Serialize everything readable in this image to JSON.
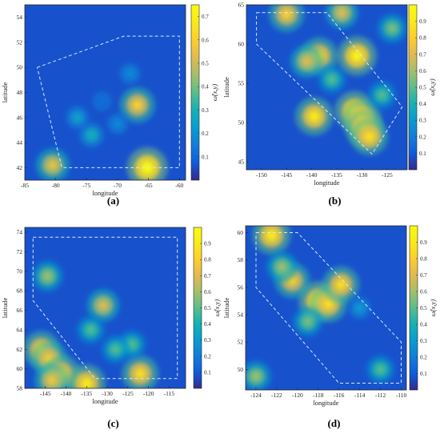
{
  "figure": {
    "panels": [
      {
        "label": "(a)",
        "xlabel": "longitude",
        "ylabel": "latitude",
        "colorbar_label": "ω̂(x,y)"
      },
      {
        "label": "(b)",
        "xlabel": "longitude",
        "ylabel": "latitude",
        "colorbar_label": "ω̂(x,y)"
      },
      {
        "label": "(c)",
        "xlabel": "longitude",
        "ylabel": "latitude",
        "colorbar_label": "ω̂(x,y)"
      },
      {
        "label": "(d)",
        "xlabel": "longitude",
        "ylabel": "latitude",
        "colorbar_label": "ω̂(x,y)"
      }
    ]
  },
  "chart_data": [
    {
      "type": "heatmap",
      "colormap": "parula",
      "xlabel": "longitude",
      "ylabel": "latitude",
      "colorbar_label": "ω̂(x,y)",
      "xlim": [
        -85,
        -59
      ],
      "ylim": [
        41,
        55
      ],
      "clim": [
        0,
        0.75
      ],
      "xticks": [
        -85,
        -80,
        -75,
        -70,
        -65,
        -60
      ],
      "yticks": [
        42,
        44,
        46,
        48,
        50,
        52,
        54
      ],
      "cticks": [
        0.1,
        0.2,
        0.3,
        0.4,
        0.5,
        0.6,
        0.7
      ],
      "region_polygon": [
        [
          -83,
          50
        ],
        [
          -69,
          52.5
        ],
        [
          -60,
          52.5
        ],
        [
          -60,
          42
        ],
        [
          -69,
          42
        ],
        [
          -79,
          42
        ],
        [
          -83,
          50
        ]
      ],
      "hotspots": [
        {
          "lon": -80.5,
          "lat": 42.2,
          "value": 0.55
        },
        {
          "lon": -65.2,
          "lat": 42.0,
          "value": 0.75
        },
        {
          "lon": -66.8,
          "lat": 47.0,
          "value": 0.6
        },
        {
          "lon": -74.2,
          "lat": 44.6,
          "value": 0.3
        },
        {
          "lon": -76.5,
          "lat": 46.0,
          "value": 0.25
        },
        {
          "lon": -68.0,
          "lat": 49.5,
          "value": 0.18
        },
        {
          "lon": -70.0,
          "lat": 45.5,
          "value": 0.18
        },
        {
          "lon": -72.5,
          "lat": 47.3,
          "value": 0.12
        }
      ]
    },
    {
      "type": "heatmap",
      "colormap": "parula",
      "xlabel": "longitude",
      "ylabel": "latitude",
      "colorbar_label": "ω̂(x,y)",
      "xlim": [
        -153,
        -121
      ],
      "ylim": [
        44,
        65
      ],
      "clim": [
        0,
        1
      ],
      "xticks": [
        -150,
        -145,
        -140,
        -135,
        -130,
        -125
      ],
      "yticks": [
        45,
        50,
        55,
        60,
        65
      ],
      "cticks": [
        0.1,
        0.2,
        0.3,
        0.4,
        0.5,
        0.6,
        0.7,
        0.8,
        0.9
      ],
      "region_polygon": [
        [
          -151,
          64
        ],
        [
          -137,
          64
        ],
        [
          -122,
          52
        ],
        [
          -128,
          46
        ],
        [
          -151,
          60
        ],
        [
          -151,
          64
        ]
      ],
      "hotspots": [
        {
          "lon": -131.5,
          "lat": 51.5,
          "value": 0.95
        },
        {
          "lon": -130.0,
          "lat": 50.5,
          "value": 0.9
        },
        {
          "lon": -129.5,
          "lat": 49.2,
          "value": 0.9
        },
        {
          "lon": -128.5,
          "lat": 48.2,
          "value": 0.85
        },
        {
          "lon": -139.5,
          "lat": 50.8,
          "value": 0.9
        },
        {
          "lon": -138.5,
          "lat": 58.5,
          "value": 0.85
        },
        {
          "lon": -141.0,
          "lat": 57.8,
          "value": 0.7
        },
        {
          "lon": -131.0,
          "lat": 58.5,
          "value": 0.95
        },
        {
          "lon": -145.0,
          "lat": 63.8,
          "value": 0.8
        },
        {
          "lon": -134.0,
          "lat": 64.0,
          "value": 0.7
        },
        {
          "lon": -124.0,
          "lat": 62.0,
          "value": 0.55
        },
        {
          "lon": -126.0,
          "lat": 53.5,
          "value": 0.5
        },
        {
          "lon": -136.0,
          "lat": 55.5,
          "value": 0.5
        }
      ]
    },
    {
      "type": "heatmap",
      "colormap": "parula",
      "xlabel": "longitude",
      "ylabel": "latitude",
      "colorbar_label": "ω̂(x,y)",
      "xlim": [
        -150,
        -111
      ],
      "ylim": [
        58,
        74.5
      ],
      "clim": [
        0,
        1
      ],
      "xticks": [
        -145,
        -140,
        -135,
        -130,
        -125,
        -120,
        -115
      ],
      "yticks": [
        58,
        60,
        62,
        64,
        66,
        68,
        70,
        72,
        74
      ],
      "cticks": [
        0.1,
        0.2,
        0.3,
        0.4,
        0.5,
        0.6,
        0.7,
        0.8,
        0.9
      ],
      "region_polygon": [
        [
          -148,
          73.5
        ],
        [
          -113,
          73.5
        ],
        [
          -113,
          59
        ],
        [
          -133,
          59
        ],
        [
          -148,
          67
        ],
        [
          -148,
          73.5
        ]
      ],
      "hotspots": [
        {
          "lon": -146.0,
          "lat": 62.0,
          "value": 0.85
        },
        {
          "lon": -144.0,
          "lat": 61.0,
          "value": 0.8
        },
        {
          "lon": -141.0,
          "lat": 59.5,
          "value": 0.85
        },
        {
          "lon": -135.0,
          "lat": 58.5,
          "value": 0.9
        },
        {
          "lon": -143.5,
          "lat": 58.8,
          "value": 0.75
        },
        {
          "lon": -131.0,
          "lat": 66.5,
          "value": 0.7
        },
        {
          "lon": -144.5,
          "lat": 69.5,
          "value": 0.6
        },
        {
          "lon": -122.0,
          "lat": 59.5,
          "value": 0.85
        },
        {
          "lon": -124.0,
          "lat": 62.5,
          "value": 0.5
        },
        {
          "lon": -128.0,
          "lat": 62.0,
          "value": 0.5
        },
        {
          "lon": -134.0,
          "lat": 64.0,
          "value": 0.5
        }
      ]
    },
    {
      "type": "heatmap",
      "colormap": "parula",
      "xlabel": "longitude",
      "ylabel": "latitude",
      "colorbar_label": "ω̂(x,y)",
      "xlim": [
        -125,
        -109.5
      ],
      "ylim": [
        48.5,
        60.5
      ],
      "clim": [
        0,
        1
      ],
      "xticks": [
        -124,
        -122,
        -120,
        -118,
        -116,
        -114,
        -112,
        -110
      ],
      "yticks": [
        50,
        52,
        54,
        56,
        58,
        60
      ],
      "cticks": [
        0.1,
        0.2,
        0.3,
        0.4,
        0.5,
        0.6,
        0.7,
        0.8,
        0.9
      ],
      "region_polygon": [
        [
          -124,
          60
        ],
        [
          -120,
          60
        ],
        [
          -110,
          52
        ],
        [
          -110,
          49
        ],
        [
          -116,
          49
        ],
        [
          -124,
          56
        ],
        [
          -124,
          60
        ]
      ],
      "hotspots": [
        {
          "lon": -122.5,
          "lat": 59.8,
          "value": 0.9
        },
        {
          "lon": -118.0,
          "lat": 55.0,
          "value": 0.95
        },
        {
          "lon": -117.0,
          "lat": 54.8,
          "value": 0.85
        },
        {
          "lon": -120.5,
          "lat": 56.5,
          "value": 0.8
        },
        {
          "lon": -121.5,
          "lat": 57.5,
          "value": 0.6
        },
        {
          "lon": -115.8,
          "lat": 56.2,
          "value": 0.85
        },
        {
          "lon": -119.0,
          "lat": 53.5,
          "value": 0.55
        },
        {
          "lon": -124.0,
          "lat": 49.5,
          "value": 0.6
        },
        {
          "lon": -112.0,
          "lat": 50.0,
          "value": 0.5
        },
        {
          "lon": -114.0,
          "lat": 54.5,
          "value": 0.3
        }
      ]
    }
  ]
}
